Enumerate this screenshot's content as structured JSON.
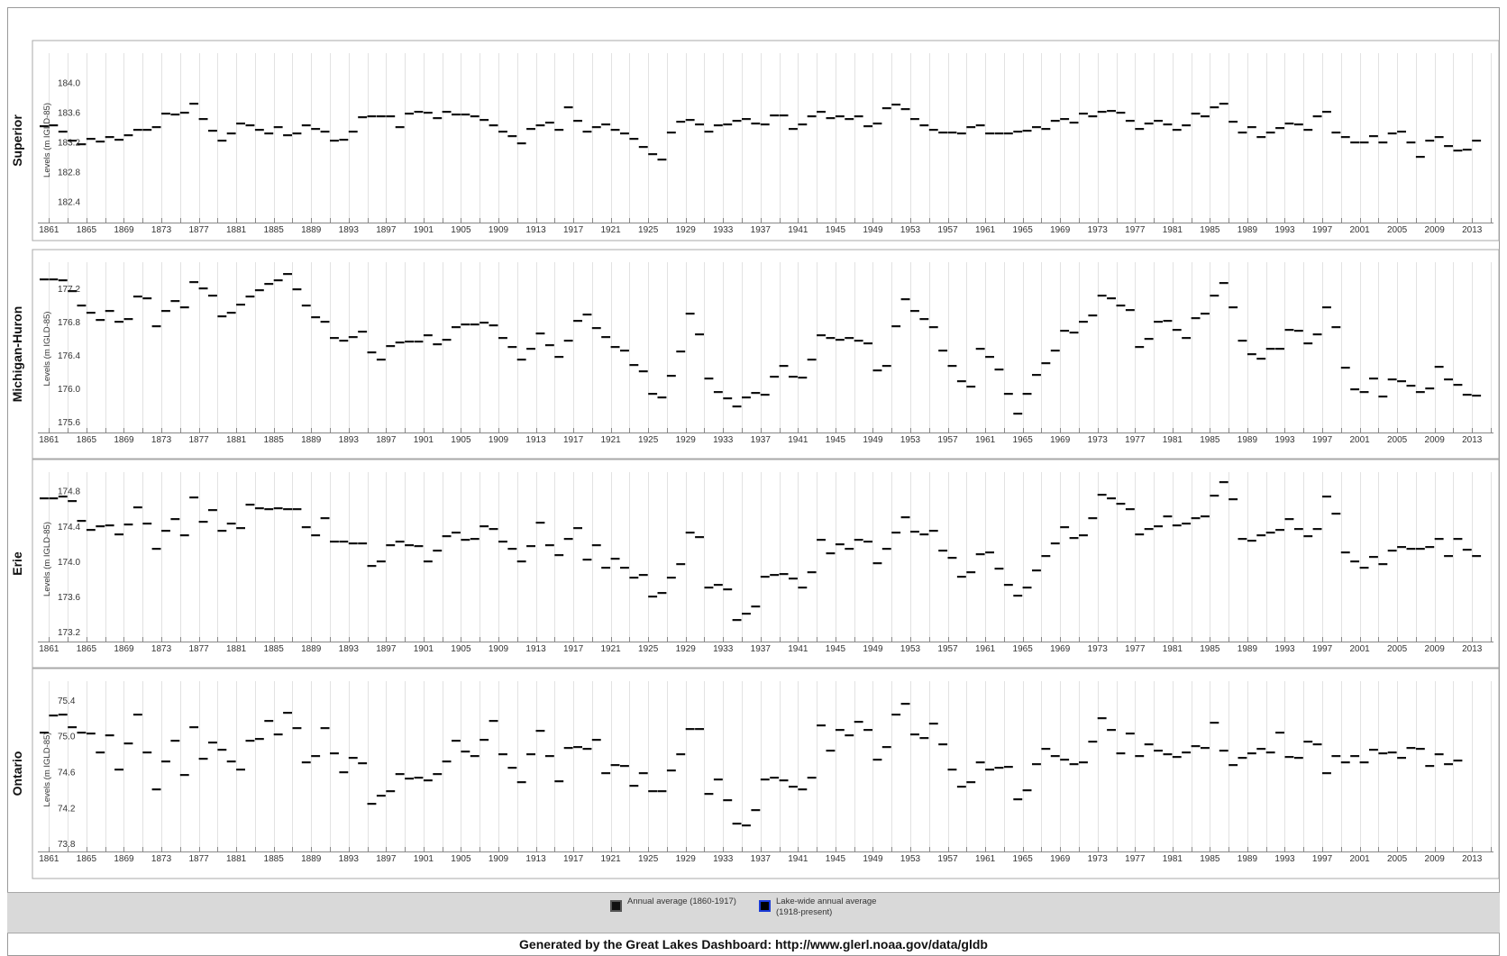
{
  "legend": {
    "items": [
      {
        "label": "Annual average (1860-1917)",
        "swatch_fill": "#111111",
        "swatch_border": "#555555"
      },
      {
        "label": "Lake-wide annual average",
        "label2": "(1918-present)",
        "swatch_fill": "#000000",
        "swatch_border": "#1a3ad6"
      }
    ]
  },
  "footer": {
    "text": "Generated by the Great Lakes Dashboard: http://www.glerl.noaa.gov/data/gldb"
  },
  "colors": {
    "series": "#111111",
    "grid": "#e2e2e2",
    "panel_border": "#a8a8a8",
    "legend_band": "#d9d9d9"
  },
  "chart_data": [
    {
      "type": "scatter",
      "lake": "Superior",
      "ylabel": "Levels (m IGLD-85)",
      "yticks": [
        182.4,
        182.8,
        183.2,
        183.6,
        184.0
      ],
      "ylim": [
        182.3,
        184.15
      ],
      "xlim": [
        1860,
        2015
      ],
      "xticks": [
        1861,
        1865,
        1869,
        1873,
        1877,
        1881,
        1885,
        1889,
        1893,
        1897,
        1901,
        1905,
        1909,
        1913,
        1917,
        1921,
        1925,
        1929,
        1933,
        1937,
        1941,
        1945,
        1949,
        1953,
        1957,
        1961,
        1965,
        1969,
        1973,
        1977,
        1981,
        1985,
        1989,
        1993,
        1997,
        2001,
        2005,
        2009,
        2013
      ],
      "grid": true,
      "marker": "horizontal-dash",
      "series": [
        {
          "start_year": 1860,
          "values": [
            183.41,
            183.42,
            183.34,
            183.22,
            183.17,
            183.24,
            183.21,
            183.27,
            183.23,
            183.29,
            183.36,
            183.36,
            183.4,
            183.58,
            183.57,
            183.59,
            183.71,
            183.51,
            183.35,
            183.22,
            183.32,
            183.45,
            183.42,
            183.36,
            183.32,
            183.4,
            183.29,
            183.31,
            183.42,
            183.38,
            183.34,
            183.22,
            183.23,
            183.34,
            183.53,
            183.55,
            183.55,
            183.54,
            183.4,
            183.58,
            183.6,
            183.59,
            183.52,
            183.61,
            183.57,
            183.57,
            183.55,
            183.5,
            183.43,
            183.34,
            183.28,
            183.18,
            183.38,
            183.43,
            183.46,
            183.37,
            183.67,
            183.48,
            183.34,
            183.4,
            183.44,
            183.37,
            183.32,
            183.24,
            183.14,
            183.04,
            182.96,
            183.33,
            183.47,
            183.5,
            183.44,
            183.34,
            183.43,
            183.44,
            183.49,
            183.51,
            183.45,
            183.44,
            183.56,
            183.56,
            183.38,
            183.44,
            183.55,
            183.61,
            183.52,
            183.54,
            183.51,
            183.55,
            183.41,
            183.45,
            183.65,
            183.7,
            183.64,
            183.51,
            183.43,
            183.36,
            183.33,
            183.33,
            183.31,
            183.4,
            183.42,
            183.32,
            183.31,
            183.31,
            183.34,
            183.35,
            183.4,
            183.38,
            183.49,
            183.51,
            183.46,
            183.58,
            183.55,
            183.61,
            183.62,
            183.59,
            183.49,
            183.38,
            183.45,
            183.49,
            183.44,
            183.37,
            183.43,
            183.58,
            183.54,
            183.67,
            183.72,
            183.47,
            183.33,
            183.4,
            183.27,
            183.33,
            183.39,
            183.45,
            183.44,
            183.36,
            183.55,
            183.6,
            183.33,
            183.27,
            183.19,
            183.2,
            183.28,
            183.2,
            183.31,
            183.34,
            183.19,
            183.0,
            183.22,
            183.27,
            183.15,
            183.09,
            183.1,
            183.22
          ]
        }
      ]
    },
    {
      "type": "scatter",
      "lake": "Michigan-Huron",
      "ylabel": "Levels (m IGLD-85)",
      "yticks": [
        175.6,
        176.0,
        176.4,
        176.8,
        177.2
      ],
      "ylim": [
        175.5,
        177.45
      ],
      "xlim": [
        1860,
        2015
      ],
      "xticks": [
        1861,
        1865,
        1869,
        1873,
        1877,
        1881,
        1885,
        1889,
        1893,
        1897,
        1901,
        1905,
        1909,
        1913,
        1917,
        1921,
        1925,
        1929,
        1933,
        1937,
        1941,
        1945,
        1949,
        1953,
        1957,
        1961,
        1965,
        1969,
        1973,
        1977,
        1981,
        1985,
        1989,
        1993,
        1997,
        2001,
        2005,
        2009,
        2013
      ],
      "grid": true,
      "marker": "horizontal-dash",
      "series": [
        {
          "start_year": 1860,
          "values": [
            177.31,
            177.31,
            177.3,
            177.17,
            177.0,
            176.91,
            176.82,
            176.93,
            176.8,
            176.83,
            177.1,
            177.08,
            176.75,
            176.93,
            177.05,
            176.97,
            177.28,
            177.2,
            177.11,
            176.86,
            176.91,
            177.01,
            177.1,
            177.18,
            177.25,
            177.3,
            177.37,
            177.19,
            177.0,
            176.85,
            176.8,
            176.61,
            176.57,
            176.62,
            176.68,
            176.43,
            176.35,
            176.51,
            176.55,
            176.56,
            176.56,
            176.64,
            176.53,
            176.58,
            176.73,
            176.77,
            176.77,
            176.79,
            176.76,
            176.61,
            176.5,
            176.35,
            176.48,
            176.66,
            176.52,
            176.38,
            176.57,
            176.81,
            176.89,
            176.72,
            176.62,
            176.5,
            176.45,
            176.28,
            176.2,
            175.93,
            175.89,
            176.15,
            176.44,
            176.9,
            176.65,
            176.12,
            175.95,
            175.88,
            175.78,
            175.89,
            175.94,
            175.92,
            176.14,
            176.27,
            176.14,
            176.13,
            176.35,
            176.64,
            176.61,
            176.58,
            176.6,
            176.57,
            176.54,
            176.22,
            176.27,
            176.75,
            177.07,
            176.93,
            176.83,
            176.73,
            176.45,
            176.27,
            176.08,
            176.02,
            176.48,
            176.38,
            176.23,
            175.93,
            175.7,
            175.93,
            176.16,
            176.3,
            176.45,
            176.69,
            176.67,
            176.8,
            176.88,
            177.11,
            177.08,
            176.99,
            176.94,
            176.5,
            176.59,
            176.8,
            176.81,
            176.7,
            176.61,
            176.84,
            176.9,
            177.11,
            177.27,
            176.97,
            176.57,
            176.41,
            176.36,
            176.47,
            176.48,
            176.7,
            176.69,
            176.54,
            176.65,
            176.97,
            176.73,
            176.25,
            175.99,
            175.96,
            176.12,
            175.9,
            176.11,
            176.09,
            176.03,
            175.96,
            176.0,
            176.26,
            176.11,
            176.04,
            175.92,
            175.91
          ]
        }
      ]
    },
    {
      "type": "scatter",
      "lake": "Erie",
      "ylabel": "Levels (m IGLD-85)",
      "yticks": [
        173.2,
        173.6,
        174.0,
        174.4,
        174.8
      ],
      "ylim": [
        173.1,
        174.95
      ],
      "xlim": [
        1860,
        2015
      ],
      "xticks": [
        1861,
        1865,
        1869,
        1873,
        1877,
        1881,
        1885,
        1889,
        1893,
        1897,
        1901,
        1905,
        1909,
        1913,
        1917,
        1921,
        1925,
        1929,
        1933,
        1937,
        1941,
        1945,
        1949,
        1953,
        1957,
        1961,
        1965,
        1969,
        1973,
        1977,
        1981,
        1985,
        1989,
        1993,
        1997,
        2001,
        2005,
        2009,
        2013
      ],
      "grid": true,
      "marker": "horizontal-dash",
      "series": [
        {
          "start_year": 1860,
          "values": [
            174.71,
            174.72,
            174.74,
            174.68,
            174.46,
            174.36,
            174.4,
            174.41,
            174.31,
            174.42,
            174.61,
            174.43,
            174.14,
            174.35,
            174.48,
            174.3,
            174.73,
            174.45,
            174.58,
            174.35,
            174.43,
            174.38,
            174.64,
            174.6,
            174.59,
            174.6,
            174.59,
            174.59,
            174.39,
            174.3,
            174.49,
            174.22,
            174.22,
            174.2,
            174.2,
            173.95,
            174.0,
            174.18,
            174.22,
            174.18,
            174.17,
            174.0,
            174.12,
            174.29,
            174.33,
            174.24,
            174.26,
            174.4,
            174.37,
            174.22,
            174.14,
            174.0,
            174.17,
            174.44,
            174.18,
            174.07,
            174.26,
            174.38,
            174.02,
            174.18,
            173.93,
            174.03,
            173.93,
            173.82,
            173.85,
            173.6,
            173.64,
            173.82,
            173.97,
            174.33,
            174.28,
            173.7,
            173.73,
            173.68,
            173.34,
            173.41,
            173.49,
            173.83,
            173.85,
            173.86,
            173.81,
            173.7,
            173.88,
            174.24,
            174.09,
            174.19,
            174.14,
            174.24,
            174.22,
            173.98,
            174.14,
            174.33,
            174.5,
            174.34,
            174.31,
            174.35,
            174.12,
            174.04,
            173.83,
            173.88,
            174.08,
            174.1,
            173.92,
            173.73,
            173.61,
            173.7,
            173.9,
            174.06,
            174.2,
            174.39,
            174.27,
            174.3,
            174.49,
            174.76,
            174.72,
            174.65,
            174.59,
            174.31,
            174.37,
            174.4,
            174.51,
            174.41,
            174.43,
            174.49,
            174.51,
            174.75,
            174.9,
            174.7,
            174.26,
            174.23,
            174.3,
            174.33,
            174.36,
            174.48,
            174.37,
            174.29,
            174.37,
            174.74,
            174.54,
            174.1,
            174.0,
            173.93,
            174.05,
            173.97,
            174.12,
            174.16,
            174.14,
            174.14,
            174.16,
            174.26,
            174.06,
            174.25,
            174.13,
            174.06
          ]
        }
      ]
    },
    {
      "type": "scatter",
      "lake": "Ontario",
      "ylabel": "Levels (m IGLD-85)",
      "yticks": [
        73.8,
        74.2,
        74.6,
        75.0,
        75.4
      ],
      "ylim": [
        73.7,
        75.55
      ],
      "xlim": [
        1860,
        2015
      ],
      "xticks": [
        1861,
        1865,
        1869,
        1873,
        1877,
        1881,
        1885,
        1889,
        1893,
        1897,
        1901,
        1905,
        1909,
        1913,
        1917,
        1921,
        1925,
        1929,
        1933,
        1937,
        1941,
        1945,
        1949,
        1953,
        1957,
        1961,
        1965,
        1969,
        1973,
        1977,
        1981,
        1985,
        1989,
        1993,
        1997,
        2001,
        2005,
        2009,
        2013
      ],
      "grid": true,
      "marker": "horizontal-dash",
      "series": [
        {
          "start_year": 1860,
          "values": [
            75.04,
            75.23,
            75.24,
            75.1,
            75.04,
            75.03,
            74.82,
            75.01,
            74.62,
            74.92,
            75.24,
            74.82,
            74.4,
            74.72,
            74.95,
            74.56,
            75.1,
            74.75,
            74.93,
            74.85,
            74.72,
            74.63,
            74.95,
            74.97,
            75.17,
            75.02,
            75.26,
            75.09,
            74.71,
            74.78,
            75.09,
            74.81,
            74.59,
            74.76,
            74.7,
            74.24,
            74.33,
            74.38,
            74.57,
            74.52,
            74.53,
            74.5,
            74.57,
            74.72,
            74.95,
            74.83,
            74.78,
            74.96,
            75.17,
            74.8,
            74.65,
            74.48,
            74.8,
            75.06,
            74.78,
            74.49,
            74.87,
            74.88,
            74.86,
            74.96,
            74.58,
            74.68,
            74.67,
            74.44,
            74.58,
            74.38,
            74.38,
            74.61,
            74.8,
            75.08,
            75.08,
            74.35,
            74.51,
            74.28,
            74.02,
            74.0,
            74.17,
            74.51,
            74.53,
            74.5,
            74.43,
            74.4,
            74.53,
            75.12,
            74.84,
            75.07,
            75.01,
            75.16,
            75.07,
            74.74,
            74.88,
            75.24,
            75.36,
            75.02,
            74.98,
            75.14,
            74.91,
            74.63,
            74.43,
            74.48,
            74.71,
            74.62,
            74.65,
            74.66,
            74.29,
            74.39,
            74.69,
            74.86,
            74.78,
            74.74,
            74.69,
            74.71,
            74.94,
            75.2,
            75.07,
            74.81,
            75.03,
            74.78,
            74.91,
            74.84,
            74.8,
            74.77,
            74.82,
            74.89,
            74.87,
            75.15,
            74.84,
            74.68,
            74.76,
            74.81,
            74.86,
            74.82,
            75.04,
            74.77,
            74.76,
            74.94,
            74.91,
            74.58,
            74.78,
            74.71,
            74.78,
            74.71,
            74.85,
            74.81,
            74.82,
            74.76,
            74.87,
            74.86,
            74.67,
            74.8,
            74.69,
            74.73
          ]
        }
      ]
    }
  ]
}
